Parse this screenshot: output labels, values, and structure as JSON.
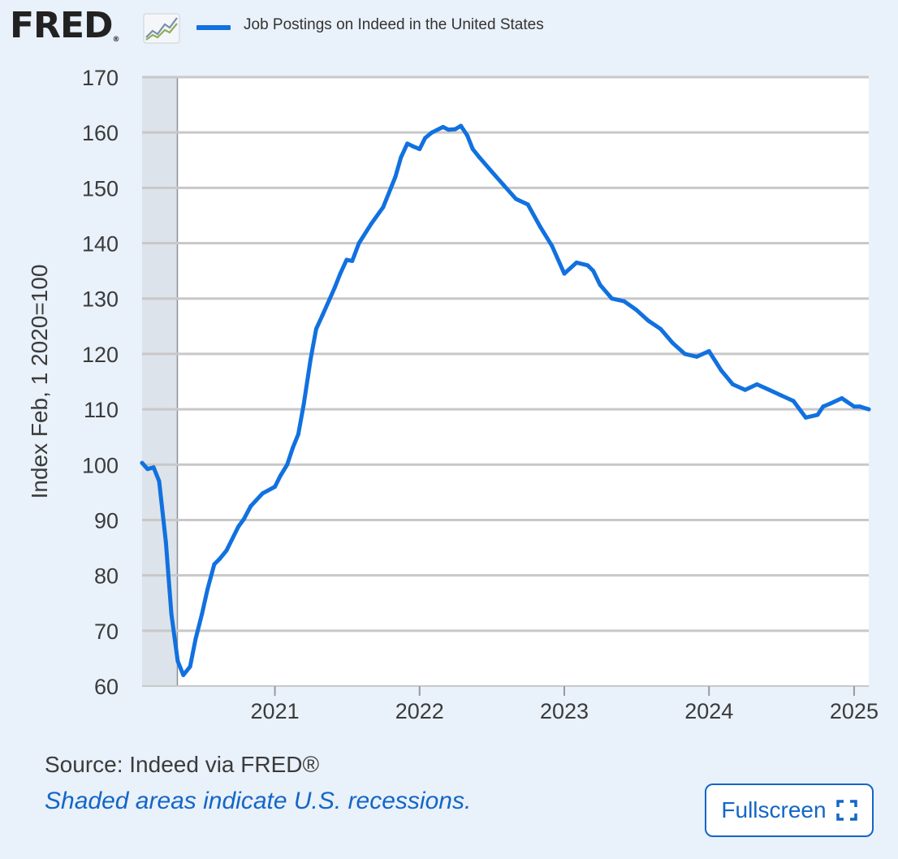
{
  "header": {
    "logo_text": "FRED",
    "logo_mark": "®",
    "logo_icon": "trend-chart-icon",
    "legend_label": "Job Postings on Indeed in the United States",
    "series_color": "#1171df"
  },
  "footer": {
    "source": "Source: Indeed via FRED®",
    "note": "Shaded areas indicate U.S. recessions.",
    "fullscreen_label": "Fullscreen",
    "fullscreen_icon": "expand-corners-icon"
  },
  "chart_data": {
    "type": "line",
    "title": "",
    "xlabel": "",
    "ylabel": "Index Feb, 1 2020=100",
    "xlim": [
      "2020-02-01",
      "2025-02-07"
    ],
    "ylim": [
      60,
      170
    ],
    "x_ticks": [
      "2021",
      "2022",
      "2023",
      "2024",
      "2025"
    ],
    "y_ticks": [
      60,
      70,
      80,
      90,
      100,
      110,
      120,
      130,
      140,
      150,
      160,
      170
    ],
    "grid": true,
    "legend": "top",
    "recession_shading": [
      [
        "2020-02-01",
        "2020-04-30"
      ]
    ],
    "series": [
      {
        "name": "Job Postings on Indeed in the United States",
        "color": "#1171df",
        "x": [
          "2020-02-01",
          "2020-02-15",
          "2020-03-01",
          "2020-03-15",
          "2020-04-01",
          "2020-04-15",
          "2020-05-01",
          "2020-05-15",
          "2020-06-01",
          "2020-06-15",
          "2020-07-01",
          "2020-07-15",
          "2020-08-01",
          "2020-08-15",
          "2020-09-01",
          "2020-09-15",
          "2020-10-01",
          "2020-10-15",
          "2020-11-01",
          "2020-12-01",
          "2021-01-01",
          "2021-01-15",
          "2021-02-01",
          "2021-02-15",
          "2021-03-01",
          "2021-03-15",
          "2021-04-01",
          "2021-04-15",
          "2021-05-01",
          "2021-06-01",
          "2021-06-15",
          "2021-07-01",
          "2021-07-15",
          "2021-08-01",
          "2021-09-01",
          "2021-10-01",
          "2021-11-01",
          "2021-11-15",
          "2021-12-01",
          "2021-12-15",
          "2022-01-01",
          "2022-01-15",
          "2022-02-01",
          "2022-03-01",
          "2022-03-15",
          "2022-04-01",
          "2022-04-15",
          "2022-05-01",
          "2022-05-15",
          "2022-06-01",
          "2022-07-01",
          "2022-08-01",
          "2022-09-01",
          "2022-10-01",
          "2022-11-01",
          "2022-12-01",
          "2023-01-01",
          "2023-02-01",
          "2023-03-01",
          "2023-03-15",
          "2023-04-01",
          "2023-05-01",
          "2023-06-01",
          "2023-07-01",
          "2023-08-01",
          "2023-09-01",
          "2023-10-01",
          "2023-11-01",
          "2023-12-01",
          "2024-01-01",
          "2024-02-01",
          "2024-03-01",
          "2024-04-01",
          "2024-05-01",
          "2024-06-01",
          "2024-07-01",
          "2024-08-01",
          "2024-09-01",
          "2024-10-01",
          "2024-10-15",
          "2024-11-01",
          "2024-12-01",
          "2025-01-01",
          "2025-01-15",
          "2025-02-07"
        ],
        "values": [
          100.3,
          99.2,
          99.5,
          97.0,
          86.0,
          73.0,
          64.5,
          62.0,
          63.5,
          68.5,
          73.0,
          77.5,
          82.0,
          83.0,
          84.5,
          86.5,
          88.8,
          90.2,
          92.5,
          94.8,
          96.0,
          98.0,
          100.0,
          103.0,
          105.5,
          111.0,
          119.0,
          124.5,
          127.0,
          132.0,
          134.5,
          137.0,
          136.8,
          140.0,
          143.5,
          146.5,
          152.0,
          155.5,
          158.0,
          157.5,
          157.0,
          159.0,
          160.0,
          161.0,
          160.5,
          160.6,
          161.2,
          159.5,
          157.0,
          155.5,
          153.0,
          150.5,
          148.0,
          147.0,
          143.0,
          139.5,
          134.5,
          136.5,
          136.0,
          135.0,
          132.5,
          130.0,
          129.5,
          128.0,
          126.0,
          124.5,
          122.0,
          120.0,
          119.5,
          120.5,
          117.0,
          114.5,
          113.5,
          114.5,
          113.5,
          112.5,
          111.5,
          108.5,
          109.0,
          110.5,
          111.0,
          112.0,
          110.5,
          110.5,
          110.0
        ]
      }
    ]
  }
}
